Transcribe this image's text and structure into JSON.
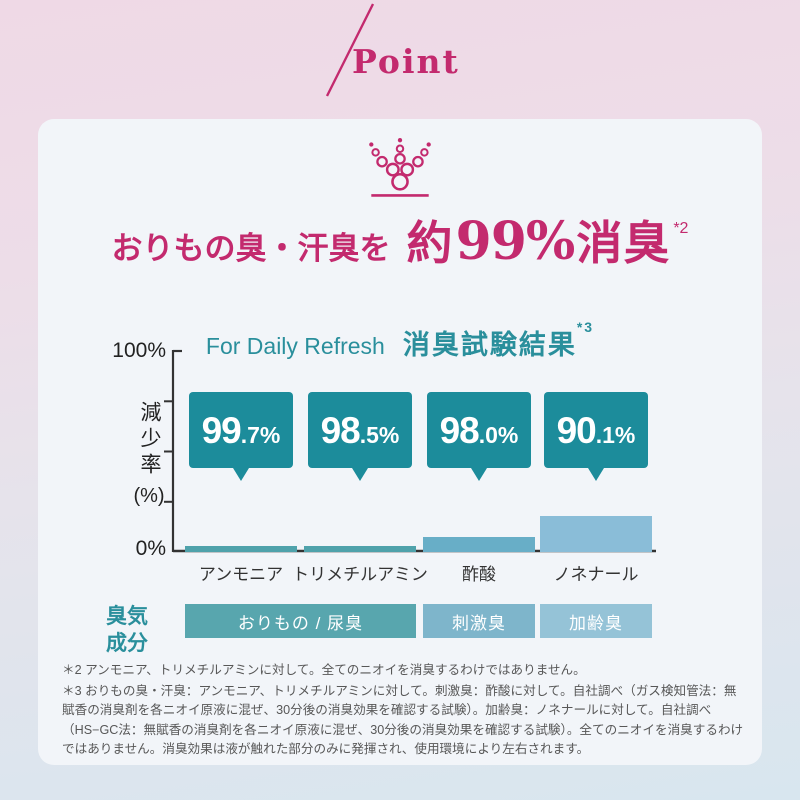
{
  "point_label": "Point",
  "accent_magenta": "#c32a6e",
  "accent_teal": "#2a8f9c",
  "headline": {
    "prefix": "おりもの臭・汗臭を",
    "highlight_pre": "約",
    "highlight_num": "99%",
    "highlight_post": "消臭",
    "footnote_ref": "*2"
  },
  "chart_title": {
    "en": "For Daily Refresh",
    "ja": "消臭試験結果",
    "footnote_ref": "*3"
  },
  "chart_data": {
    "type": "bar",
    "title": "For Daily Refresh 消臭試験結果",
    "ylabel": "減少率",
    "ylabel_unit": "(%)",
    "ylim": [
      0,
      100
    ],
    "yticks": [
      "100%",
      "0%"
    ],
    "categories": [
      "アンモニア",
      "トリメチルアミン",
      "酢酸",
      "ノネナール"
    ],
    "reduction_values": [
      99.7,
      98.5,
      98.0,
      90.1
    ],
    "reduction_display": [
      {
        "big": "99",
        "small": ".7%"
      },
      {
        "big": "98",
        "small": ".5%"
      },
      {
        "big": "98",
        "small": ".0%"
      },
      {
        "big": "90",
        "small": ".1%"
      }
    ],
    "bar_heights_pct": [
      3,
      3,
      7.5,
      18
    ],
    "bar_colors": [
      "#4fa2ab",
      "#4fa2ab",
      "#68aec7",
      "#8abdd8"
    ],
    "callout_color": "#1c8c9b",
    "group_axis_label": "臭気成分",
    "odor_groups": [
      {
        "label": "おりもの / 尿臭",
        "span": 2,
        "color": "#58a6ae"
      },
      {
        "label": "刺激臭",
        "span": 1,
        "color": "#7eb5cb"
      },
      {
        "label": "加齢臭",
        "span": 1,
        "color": "#95c3d7"
      }
    ],
    "legend": "none",
    "grid": false
  },
  "footnotes": [
    "＊2 アンモニア、トリメチルアミンに対して。全てのニオイを消臭するわけではありません。",
    "＊3 おりもの臭・汗臭：アンモニア、トリメチルアミンに対して。刺激臭：酢酸に対して。自社調べ（ガス検知管法：無賦香の消臭剤を各ニオイ原液に混ぜ、30分後の消臭効果を確認する試験）。加齢臭：ノネナールに対して。自社調べ（HS−GC法：無賦香の消臭剤を各ニオイ原液に混ぜ、30分後の消臭効果を確認する試験）。全てのニオイを消臭するわけではありません。消臭効果は液が触れた部分のみに発揮され、使用環境により左右されます。"
  ]
}
